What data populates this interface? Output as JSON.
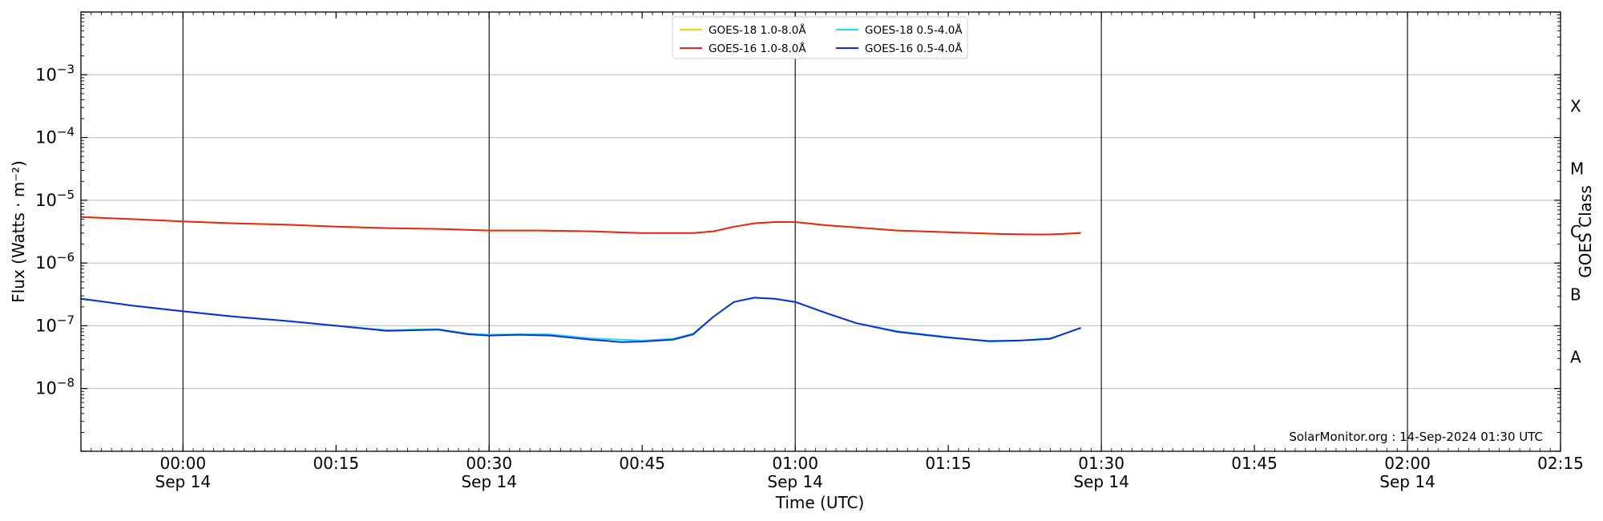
{
  "chart_data": {
    "type": "line",
    "title": "",
    "xlabel": "Time (UTC)",
    "ylabel": "Flux (Watts · m⁻²)",
    "ylabel_right": "GOES Class",
    "y_scale": "log",
    "ylim": [
      1e-09,
      0.01
    ],
    "xlim": [
      "2024-09-13 23:50",
      "2024-09-14 02:15"
    ],
    "y_ticks": [
      {
        "base": "10",
        "exp": "−3"
      },
      {
        "base": "10",
        "exp": "−4"
      },
      {
        "base": "10",
        "exp": "−5"
      },
      {
        "base": "10",
        "exp": "−6"
      },
      {
        "base": "10",
        "exp": "−7"
      },
      {
        "base": "10",
        "exp": "−8"
      }
    ],
    "x_ticks": [
      {
        "time": "00:00",
        "date": "Sep 14"
      },
      {
        "time": "00:15",
        "date": ""
      },
      {
        "time": "00:30",
        "date": "Sep 14"
      },
      {
        "time": "00:45",
        "date": ""
      },
      {
        "time": "01:00",
        "date": "Sep 14"
      },
      {
        "time": "01:15",
        "date": ""
      },
      {
        "time": "01:30",
        "date": "Sep 14"
      },
      {
        "time": "01:45",
        "date": ""
      },
      {
        "time": "02:00",
        "date": "Sep 14"
      },
      {
        "time": "02:15",
        "date": ""
      }
    ],
    "goes_classes": [
      "X",
      "M",
      "C",
      "B",
      "A"
    ],
    "grid": true,
    "legend_position": "top-center",
    "series": [
      {
        "name": "GOES-18 1.0-8.0Å",
        "color": "#f2d600",
        "x": [
          "23:50",
          "23:55",
          "00:00",
          "00:05",
          "00:10",
          "00:15",
          "00:20",
          "00:25",
          "00:30",
          "00:35",
          "00:40",
          "00:45",
          "00:50",
          "00:52",
          "00:54",
          "00:56",
          "00:58",
          "01:00",
          "01:03",
          "01:06",
          "01:10",
          "01:15",
          "01:20",
          "01:23",
          "01:25",
          "01:28"
        ],
        "y": [
          5.4e-06,
          5e-06,
          4.6e-06,
          4.3e-06,
          4.1e-06,
          3.8e-06,
          3.6e-06,
          3.5e-06,
          3.3e-06,
          3.3e-06,
          3.2e-06,
          3e-06,
          3e-06,
          3.2e-06,
          3.8e-06,
          4.3e-06,
          4.5e-06,
          4.5e-06,
          4e-06,
          3.7e-06,
          3.3e-06,
          3.1e-06,
          2.9e-06,
          2.85e-06,
          2.85e-06,
          3e-06
        ]
      },
      {
        "name": "GOES-16 1.0-8.0Å",
        "color": "#e8261a",
        "x": [
          "23:50",
          "23:55",
          "00:00",
          "00:05",
          "00:10",
          "00:15",
          "00:20",
          "00:25",
          "00:30",
          "00:35",
          "00:40",
          "00:45",
          "00:50",
          "00:52",
          "00:54",
          "00:56",
          "00:58",
          "01:00",
          "01:03",
          "01:06",
          "01:10",
          "01:15",
          "01:20",
          "01:23",
          "01:25",
          "01:28"
        ],
        "y": [
          5.4e-06,
          5e-06,
          4.6e-06,
          4.3e-06,
          4.1e-06,
          3.8e-06,
          3.6e-06,
          3.5e-06,
          3.3e-06,
          3.3e-06,
          3.2e-06,
          3e-06,
          3e-06,
          3.2e-06,
          3.8e-06,
          4.3e-06,
          4.5e-06,
          4.5e-06,
          4e-06,
          3.7e-06,
          3.3e-06,
          3.1e-06,
          2.9e-06,
          2.85e-06,
          2.85e-06,
          3e-06
        ]
      },
      {
        "name": "GOES-18 0.5-4.0Å",
        "color": "#26d9f0",
        "x": [
          "23:50",
          "23:55",
          "00:00",
          "00:05",
          "00:10",
          "00:15",
          "00:20",
          "00:25",
          "00:28",
          "00:30",
          "00:33",
          "00:36",
          "00:40",
          "00:45",
          "00:48",
          "00:50",
          "00:52",
          "00:54",
          "00:56",
          "00:58",
          "01:00",
          "01:03",
          "01:06",
          "01:10",
          "01:15",
          "01:19",
          "01:22",
          "01:25",
          "01:28"
        ],
        "y": [
          2.7e-07,
          2.1e-07,
          1.7e-07,
          1.4e-07,
          1.2e-07,
          1e-07,
          8.5e-08,
          8.8e-08,
          7.5e-08,
          7.2e-08,
          7.3e-08,
          7.3e-08,
          6.3e-08,
          5.8e-08,
          6.2e-08,
          7.5e-08,
          1.4e-07,
          2.4e-07,
          2.8e-07,
          2.7e-07,
          2.4e-07,
          1.6e-07,
          1.1e-07,
          8.2e-08,
          6.6e-08,
          5.6e-08,
          5.8e-08,
          6.3e-08,
          9.2e-08
        ]
      },
      {
        "name": "GOES-16 0.5-4.0Å",
        "color": "#0a2fd6",
        "x": [
          "23:50",
          "23:55",
          "00:00",
          "00:05",
          "00:10",
          "00:15",
          "00:20",
          "00:25",
          "00:28",
          "00:30",
          "00:33",
          "00:36",
          "00:40",
          "00:43",
          "00:45",
          "00:48",
          "00:50",
          "00:52",
          "00:54",
          "00:56",
          "00:58",
          "01:00",
          "01:03",
          "01:06",
          "01:10",
          "01:15",
          "01:19",
          "01:22",
          "01:25",
          "01:28"
        ],
        "y": [
          2.7e-07,
          2.1e-07,
          1.7e-07,
          1.4e-07,
          1.2e-07,
          1e-07,
          8.3e-08,
          8.7e-08,
          7.3e-08,
          7e-08,
          7.2e-08,
          7e-08,
          6e-08,
          5.5e-08,
          5.6e-08,
          6e-08,
          7.3e-08,
          1.4e-07,
          2.4e-07,
          2.8e-07,
          2.7e-07,
          2.4e-07,
          1.6e-07,
          1.1e-07,
          8e-08,
          6.5e-08,
          5.7e-08,
          5.8e-08,
          6.2e-08,
          9.3e-08
        ]
      }
    ],
    "annotation": "SolarMonitor.org : 14-Sep-2024 01:30 UTC"
  }
}
